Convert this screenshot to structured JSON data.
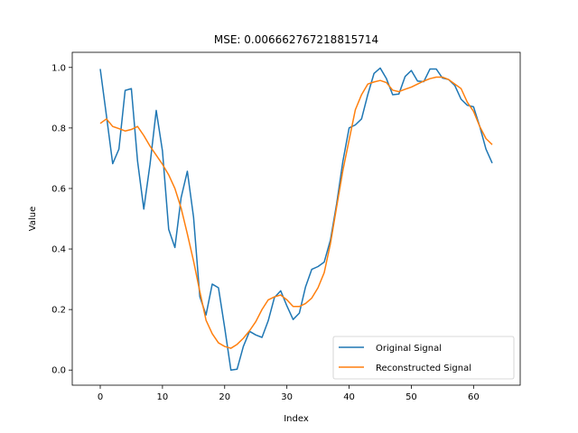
{
  "chart_data": {
    "type": "line",
    "title": "MSE: 0.006662767218815714",
    "xlabel": "Index",
    "ylabel": "Value",
    "xlim": [
      -4.5,
      67.5
    ],
    "ylim": [
      -0.05,
      1.05
    ],
    "xticks": [
      0,
      10,
      20,
      30,
      40,
      50,
      60
    ],
    "yticks": [
      0.0,
      0.2,
      0.4,
      0.6,
      0.8,
      1.0
    ],
    "xtick_labels": [
      "0",
      "10",
      "20",
      "30",
      "40",
      "50",
      "60"
    ],
    "ytick_labels": [
      "0.0",
      "0.2",
      "0.4",
      "0.6",
      "0.8",
      "1.0"
    ],
    "grid": false,
    "legend_position": "lower-right",
    "x": [
      0,
      1,
      2,
      3,
      4,
      5,
      6,
      7,
      8,
      9,
      10,
      11,
      12,
      13,
      14,
      15,
      16,
      17,
      18,
      19,
      20,
      21,
      22,
      23,
      24,
      25,
      26,
      27,
      28,
      29,
      30,
      31,
      32,
      33,
      34,
      35,
      36,
      37,
      38,
      39,
      40,
      41,
      42,
      43,
      44,
      45,
      46,
      47,
      48,
      49,
      50,
      51,
      52,
      53,
      54,
      55,
      56,
      57,
      58,
      59,
      60,
      61,
      62,
      63
    ],
    "series": [
      {
        "name": "Original Signal",
        "color": "#1f77b4",
        "values": [
          0.995,
          0.84,
          0.682,
          0.73,
          0.924,
          0.93,
          0.69,
          0.532,
          0.68,
          0.858,
          0.724,
          0.465,
          0.405,
          0.57,
          0.657,
          0.505,
          0.243,
          0.182,
          0.284,
          0.272,
          0.14,
          0.0,
          0.003,
          0.078,
          0.128,
          0.116,
          0.108,
          0.163,
          0.24,
          0.262,
          0.212,
          0.167,
          0.188,
          0.275,
          0.333,
          0.342,
          0.357,
          0.43,
          0.55,
          0.69,
          0.8,
          0.81,
          0.83,
          0.91,
          0.98,
          0.998,
          0.963,
          0.91,
          0.912,
          0.97,
          0.99,
          0.955,
          0.953,
          0.995,
          0.995,
          0.965,
          0.96,
          0.94,
          0.895,
          0.875,
          0.87,
          0.805,
          0.73,
          0.684
        ]
      },
      {
        "name": "Reconstructed Signal",
        "color": "#ff7f0e",
        "values": [
          0.815,
          0.83,
          0.805,
          0.798,
          0.79,
          0.795,
          0.805,
          0.775,
          0.74,
          0.71,
          0.68,
          0.645,
          0.6,
          0.535,
          0.45,
          0.36,
          0.26,
          0.165,
          0.12,
          0.09,
          0.078,
          0.072,
          0.085,
          0.105,
          0.13,
          0.16,
          0.2,
          0.232,
          0.242,
          0.248,
          0.232,
          0.21,
          0.21,
          0.22,
          0.238,
          0.272,
          0.322,
          0.418,
          0.54,
          0.66,
          0.76,
          0.86,
          0.91,
          0.945,
          0.952,
          0.957,
          0.95,
          0.925,
          0.92,
          0.928,
          0.935,
          0.945,
          0.955,
          0.963,
          0.968,
          0.968,
          0.96,
          0.945,
          0.93,
          0.885,
          0.855,
          0.805,
          0.765,
          0.745
        ]
      }
    ]
  }
}
